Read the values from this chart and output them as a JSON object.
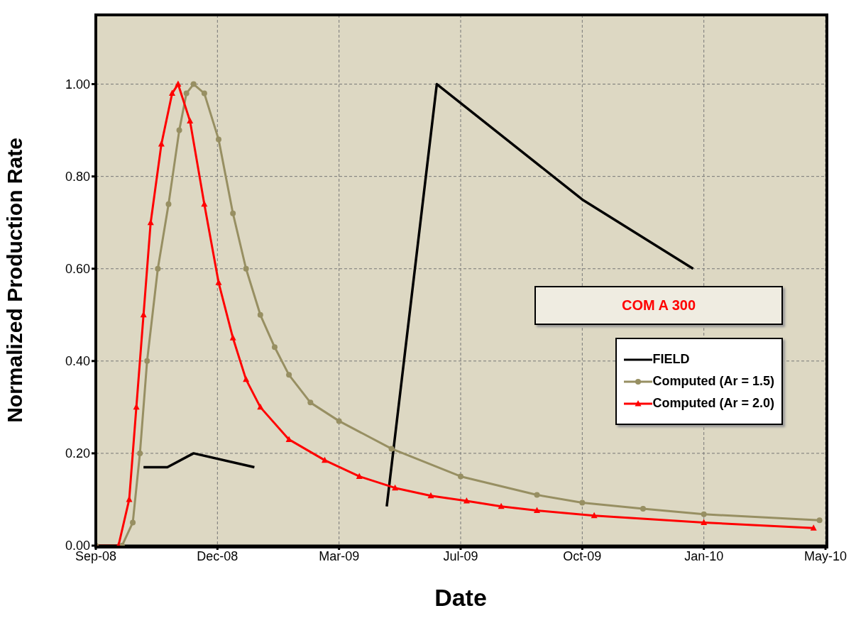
{
  "chart_data": {
    "type": "line",
    "xlabel": "Date",
    "ylabel": "Normalized Production Rate",
    "annotations": [
      "COM A 300"
    ],
    "series": [
      {
        "name": "FIELD",
        "color": "#000000",
        "marker": "none",
        "x": [
          "2008-10-11",
          "2008-10-31",
          "2008-11-22",
          "2009-01-12",
          "2009-03-01",
          "2009-05-03",
          "2009-06-14",
          "2009-10-14",
          "2010-01-15"
        ],
        "values": [
          0.17,
          0.17,
          0.2,
          0.17,
          null,
          0.085,
          1.0,
          0.75,
          0.6
        ]
      },
      {
        "name": "Computed (Ar = 1.5)",
        "color": "#978f62",
        "marker": "circle",
        "x": [
          "2008-09-01",
          "2008-09-23",
          "2008-10-02",
          "2008-10-08",
          "2008-10-14",
          "2008-10-23",
          "2008-11-01",
          "2008-11-10",
          "2008-11-16",
          "2008-11-22",
          "2008-12-01",
          "2008-12-13",
          "2008-12-25",
          "2009-01-05",
          "2009-01-17",
          "2009-01-29",
          "2009-02-10",
          "2009-02-28",
          "2009-03-24",
          "2009-05-07",
          "2009-07-04",
          "2009-09-06",
          "2009-10-14",
          "2009-12-04",
          "2010-01-24",
          "2010-05-01"
        ],
        "values": [
          0,
          0,
          0.05,
          0.2,
          0.4,
          0.6,
          0.74,
          0.9,
          0.98,
          1.0,
          0.98,
          0.88,
          0.72,
          0.6,
          0.5,
          0.43,
          0.37,
          0.31,
          0.27,
          0.21,
          0.15,
          0.11,
          0.093,
          0.08,
          0.068,
          0.055
        ]
      },
      {
        "name": "Computed (Ar = 2.0)",
        "color": "#ff0000",
        "marker": "triangle",
        "x": [
          "2008-09-01",
          "2008-09-20",
          "2008-09-29",
          "2008-10-05",
          "2008-10-11",
          "2008-10-17",
          "2008-10-26",
          "2008-11-04",
          "2008-11-09",
          "2008-11-19",
          "2008-12-01",
          "2008-12-13",
          "2008-12-25",
          "2009-01-05",
          "2009-01-17",
          "2009-02-10",
          "2009-03-12",
          "2009-04-10",
          "2009-05-10",
          "2009-06-09",
          "2009-07-09",
          "2009-08-07",
          "2009-09-06",
          "2009-10-24",
          "2010-01-24",
          "2010-04-26"
        ],
        "values": [
          0,
          0,
          0.1,
          0.3,
          0.5,
          0.7,
          0.87,
          0.98,
          1.0,
          0.92,
          0.74,
          0.57,
          0.45,
          0.36,
          0.3,
          0.23,
          0.185,
          0.15,
          0.125,
          0.108,
          0.097,
          0.085,
          0.076,
          0.065,
          0.05,
          0.038
        ]
      }
    ],
    "xlim": [
      "2008-09-01",
      "2010-05-06"
    ],
    "xticks": [
      {
        "value": "2008-09-01",
        "label": "Sep-08"
      },
      {
        "value": "2008-12-12",
        "label": "Dec-08"
      },
      {
        "value": "2009-03-24",
        "label": "Mar-09"
      },
      {
        "value": "2009-07-04",
        "label": "Jul-09"
      },
      {
        "value": "2009-10-14",
        "label": "Oct-09"
      },
      {
        "value": "2010-01-24",
        "label": "Jan-10"
      },
      {
        "value": "2010-05-06",
        "label": "May-10"
      }
    ],
    "ylim": [
      0,
      1.15
    ],
    "yticks": [
      {
        "value": 0,
        "label": "0.00"
      },
      {
        "value": 0.2,
        "label": "0.20"
      },
      {
        "value": 0.4,
        "label": "0.40"
      },
      {
        "value": 0.6,
        "label": "0.60"
      },
      {
        "value": 0.8,
        "label": "0.80"
      },
      {
        "value": 1.0,
        "label": "1.00"
      }
    ],
    "grid": true,
    "legend": "right",
    "line_style": "solid"
  }
}
